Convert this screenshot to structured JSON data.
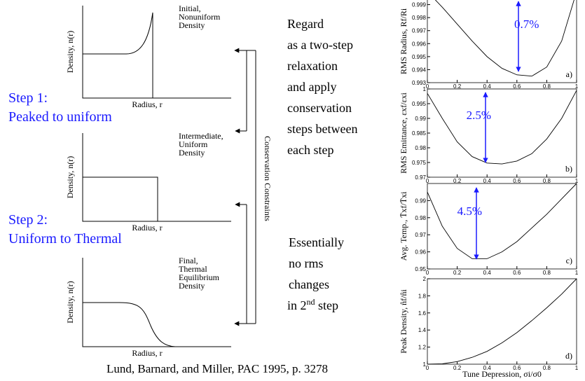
{
  "diagrams": [
    {
      "ylabel": "Density, n(r)",
      "xlabel": "Radius, r",
      "caption": [
        "Initial,",
        "Nonuniform",
        "Density"
      ]
    },
    {
      "ylabel": "Density, n(r)",
      "xlabel": "Radius, r",
      "caption": [
        "Intermediate,",
        "Uniform",
        "Density"
      ]
    },
    {
      "ylabel": "Density, n(r)",
      "xlabel": "Radius, r",
      "caption": [
        "Final,",
        "Thermal",
        "Equilibrium",
        "Density"
      ]
    }
  ],
  "steps": [
    {
      "title": "Step 1:",
      "text": "Peaked to uniform"
    },
    {
      "title": "Step 2:",
      "text": "Uniform to Thermal"
    }
  ],
  "notes": {
    "first": [
      "Regard",
      "as a two-step",
      "relaxation",
      "and apply",
      "conservation",
      "steps between",
      "each step"
    ],
    "second": [
      "Essentially",
      "no rms",
      "changes"
    ],
    "last": [
      "in 2",
      "nd",
      " step"
    ]
  },
  "constraints": "Conservation Constraints",
  "citation": "Lund, Barnard, and Miller, PAC 1995, p. 3278",
  "chart_data": [
    {
      "type": "line",
      "ylabel": "RMS Radius, Rf/Ri",
      "panel": "a)",
      "annotation": "0.7%",
      "color": "#000000",
      "x": [
        0,
        0.1,
        0.2,
        0.3,
        0.4,
        0.5,
        0.6,
        0.7,
        0.8,
        0.9,
        1
      ],
      "values": [
        1.0,
        0.9988,
        0.9975,
        0.9962,
        0.995,
        0.9941,
        0.9936,
        0.9935,
        0.9942,
        0.9962,
        1.0
      ],
      "xlim": [
        0,
        1
      ],
      "ylim": [
        0.993,
        1
      ],
      "xticks": [
        0,
        0.2,
        0.4,
        0.6,
        0.8,
        1
      ],
      "yticks": [
        0.993,
        0.994,
        0.995,
        0.996,
        0.997,
        0.998,
        0.999
      ]
    },
    {
      "type": "line",
      "ylabel": "RMS Emittance, εxf/εxi",
      "panel": "b)",
      "annotation": "2.5%",
      "color": "#000000",
      "x": [
        0,
        0.1,
        0.2,
        0.3,
        0.4,
        0.5,
        0.6,
        0.7,
        0.8,
        0.9,
        1
      ],
      "values": [
        0.9985,
        0.99,
        0.982,
        0.977,
        0.9748,
        0.9745,
        0.9755,
        0.978,
        0.983,
        0.99,
        0.9995
      ],
      "xlim": [
        0,
        1
      ],
      "ylim": [
        0.97,
        1
      ],
      "xticks": [
        0,
        0.2,
        0.4,
        0.6,
        0.8,
        1
      ],
      "yticks": [
        0.97,
        0.975,
        0.98,
        0.985,
        0.99,
        0.995,
        1
      ]
    },
    {
      "type": "line",
      "ylabel": "Avg. Temp., T̄xf/T̄xi",
      "panel": "c)",
      "annotation": "4.5%",
      "color": "#000000",
      "x": [
        0,
        0.1,
        0.2,
        0.3,
        0.4,
        0.5,
        0.6,
        0.7,
        0.8,
        0.9,
        1
      ],
      "values": [
        0.995,
        0.975,
        0.962,
        0.956,
        0.956,
        0.96,
        0.966,
        0.974,
        0.982,
        0.991,
        1.0
      ],
      "xlim": [
        0,
        1
      ],
      "ylim": [
        0.95,
        1
      ],
      "xticks": [
        0,
        0.2,
        0.4,
        0.6,
        0.8,
        1
      ],
      "yticks": [
        0.95,
        0.96,
        0.97,
        0.98,
        0.99
      ]
    },
    {
      "type": "line",
      "ylabel": "Peak Density, n̂f/n̂i",
      "xlabel": "Tune Depression, σi/σ0",
      "panel": "d)",
      "color": "#000000",
      "x": [
        0,
        0.1,
        0.2,
        0.3,
        0.4,
        0.5,
        0.6,
        0.7,
        0.8,
        0.9,
        1
      ],
      "values": [
        1.0,
        1.005,
        1.03,
        1.08,
        1.15,
        1.25,
        1.37,
        1.51,
        1.66,
        1.82,
        2.0
      ],
      "xlim": [
        0,
        1
      ],
      "ylim": [
        1,
        2
      ],
      "xticks": [
        0,
        0.2,
        0.4,
        0.6,
        0.8,
        1
      ],
      "yticks": [
        1,
        1.2,
        1.4,
        1.6,
        1.8,
        2
      ]
    }
  ]
}
